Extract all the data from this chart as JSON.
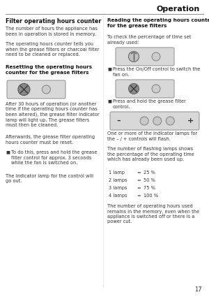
{
  "page_title": "Operation",
  "page_number": "17",
  "bg_color": "#ffffff",
  "sections": {
    "left": {
      "heading": "Filter operating hours counter",
      "para1": "The number of hours the appliance has\nbeen in operation is stored in memory.",
      "para2": "The operating hours counter tells you\nwhen the grease filters or charcoal filter\nneed to be cleaned or replaced.",
      "subheading": "Resetting the operating hours\ncounter for the grease filters",
      "para3": "After 30 hours of operation (or another\ntime if the operating hours counter has\nbeen altered), the grease filter indicator\nlamp will light up. The grease filters\nmust then be cleaned.",
      "para4": "Afterwards, the grease filter operating\nhours counter must be reset.",
      "bullet1": "To do this, press and hold the grease\nfilter control for approx. 3 seconds\nwhile the fan is switched on.",
      "para5": "The indicator lamp for the control will\ngo out."
    },
    "right": {
      "subheading": "Reading the operating hours counter\nfor the grease filters",
      "para1": "To check the percentage of time set\nalready used:",
      "bullet1": "Press the On/Off control to switch the\nfan on.",
      "bullet2": "Press and hold the grease filter\ncontrol.",
      "para2": "One or more of the indicator lamps for\nthe – / + controls will flash.",
      "para3": "The number of flashing lamps shows\nthe percentage of the operating time\nwhich has already been used up.",
      "lamp_table": [
        [
          "1 lamp",
          "=",
          "25 %"
        ],
        [
          "2 lamps",
          "=",
          "50 %"
        ],
        [
          "3 lamps",
          "=",
          "75 %"
        ],
        [
          "4 lamps",
          "=",
          "100 %"
        ]
      ],
      "para4": "The number of operating hours used\nremains in the memory, even when the\nappliance is switched off or there is a\npower cut."
    }
  }
}
